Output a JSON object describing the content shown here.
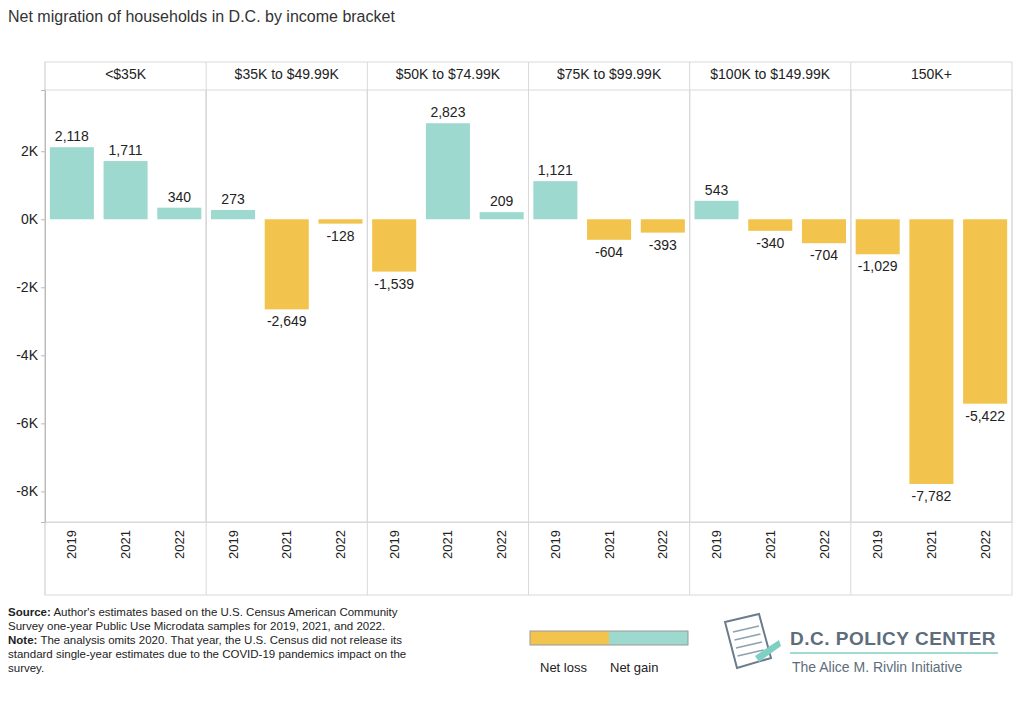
{
  "header": {
    "title": "Net migration of households in D.C. by income bracket"
  },
  "chart_data": [
    {
      "type": "bar",
      "title": "<$35K",
      "categories": [
        "2019",
        "2021",
        "2022"
      ],
      "values": [
        2118,
        1711,
        340
      ],
      "value_labels": [
        "2,118",
        "1,711",
        "340"
      ],
      "colors": [
        "#9ed9d0",
        "#9ed9d0",
        "#9ed9d0"
      ],
      "data_labels": true,
      "grid": false,
      "ylim": [
        -8900,
        3800
      ],
      "yticks": [
        {
          "value": 2000,
          "label": "2K"
        },
        {
          "value": 0,
          "label": "0K"
        },
        {
          "value": -2000,
          "label": "-2K"
        },
        {
          "value": -4000,
          "label": "-4K"
        },
        {
          "value": -6000,
          "label": "-6K"
        },
        {
          "value": -8000,
          "label": "-8K"
        }
      ]
    },
    {
      "type": "bar",
      "title": "$35K to $49.99K",
      "categories": [
        "2019",
        "2021",
        "2022"
      ],
      "values": [
        273,
        -2649,
        -128
      ],
      "value_labels": [
        "273",
        "-2,649",
        "-128"
      ],
      "colors": [
        "#9ed9d0",
        "#f2c44e",
        "#f2c44e"
      ],
      "data_labels": true,
      "grid": false,
      "tick_labels": "x",
      "ylim": [
        -8900,
        3800
      ]
    },
    {
      "type": "bar",
      "title": "$50K to $74.99K",
      "categories": [
        "2019",
        "2021",
        "2022"
      ],
      "values": [
        -1539,
        2823,
        209
      ],
      "value_labels": [
        "-1,539",
        "2,823",
        "209"
      ],
      "colors": [
        "#f2c44e",
        "#9ed9d0",
        "#9ed9d0"
      ],
      "data_labels": true,
      "grid": false,
      "tick_labels": "x",
      "ylim": [
        -8900,
        3800
      ]
    },
    {
      "type": "bar",
      "title": "$75K to $99.99K",
      "categories": [
        "2019",
        "2021",
        "2022"
      ],
      "values": [
        1121,
        -604,
        -393
      ],
      "value_labels": [
        "1,121",
        "-604",
        "-393"
      ],
      "colors": [
        "#9ed9d0",
        "#f2c44e",
        "#f2c44e"
      ],
      "data_labels": true,
      "grid": false,
      "tick_labels": "x",
      "ylim": [
        -8900,
        3800
      ]
    },
    {
      "type": "bar",
      "title": "$100K to $149.99K",
      "categories": [
        "2019",
        "2021",
        "2022"
      ],
      "values": [
        543,
        -340,
        -704
      ],
      "value_labels": [
        "543",
        "-340",
        "-704"
      ],
      "colors": [
        "#9ed9d0",
        "#f2c44e",
        "#f2c44e"
      ],
      "data_labels": true,
      "grid": false,
      "tick_labels": "x",
      "ylim": [
        -8900,
        3800
      ]
    },
    {
      "type": "bar",
      "title": "150K+",
      "categories": [
        "2019",
        "2021",
        "2022"
      ],
      "values": [
        -1029,
        -7782,
        -5422
      ],
      "value_labels": [
        "-1,029",
        "-7,782",
        "-5,422"
      ],
      "colors": [
        "#f2c44e",
        "#f2c44e",
        "#f2c44e"
      ],
      "data_labels": true,
      "grid": false,
      "tick_labels": "x",
      "ylim": [
        -8900,
        3800
      ]
    }
  ],
  "footer": {
    "source": {
      "label": "Source:",
      "lines": [
        "Author's estimates based on the U.S. Census American Community",
        "Survey one-year Public Use Microdata samples for 2019, 2021, and 2022."
      ]
    },
    "note": {
      "label": "Note:",
      "lines": [
        "The analysis omits 2020. That year, the U.S. Census did not release its",
        "standard single-year estimates due to the COVID-19 pandemics impact on the",
        "survey."
      ]
    },
    "legend_items": [
      {
        "name": "Net loss",
        "color": "#f2c44e"
      },
      {
        "name": "Net gain",
        "color": "#9ed9d0"
      }
    ],
    "logo": {
      "name": "D.C. POLICY CENTER",
      "subtitle": "The Alice M. Rivlin Initiative"
    }
  }
}
